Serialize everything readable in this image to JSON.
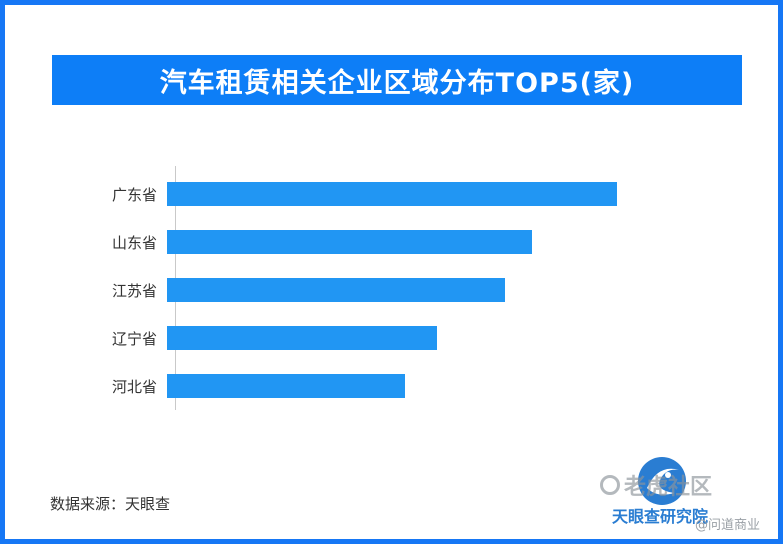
{
  "chart_data": {
    "type": "bar",
    "orientation": "horizontal",
    "title": "汽车租赁相关企业区域分布TOP5(家)",
    "categories": [
      "广东省",
      "山东省",
      "江苏省",
      "辽宁省",
      "河北省"
    ],
    "values": [
      100,
      81,
      75,
      60,
      53
    ],
    "xlabel": "",
    "ylabel": "",
    "xlim": [
      0,
      128
    ],
    "grid": false,
    "legend": "none",
    "bar_color": "#2196f3"
  },
  "footer": {
    "source": "数据来源：天眼查"
  },
  "branding": {
    "institute": "天眼查研究院",
    "watermark_primary": "老虎社区",
    "watermark_secondary": "@问道商业"
  },
  "colors": {
    "frame_border": "#1677f5",
    "title_banner": "#0d7ef7",
    "title_text": "#ffffff",
    "bar": "#2196f3",
    "label_text": "#333333",
    "axis_line": "#c9c9c9",
    "brand_blue": "#2a7dd2",
    "watermark_gray": "#8d949b"
  }
}
